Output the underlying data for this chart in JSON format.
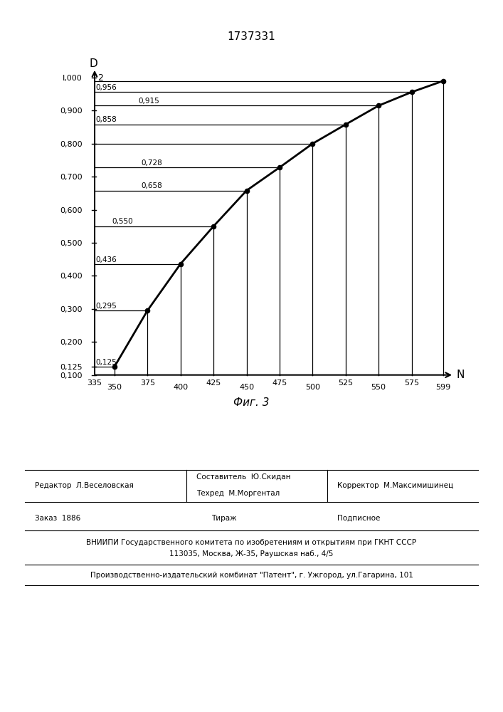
{
  "title": "1737331",
  "xlabel": "N",
  "fig_caption": "Фиг. 3",
  "x_data": [
    350,
    375,
    400,
    425,
    450,
    475,
    500,
    525,
    550,
    575,
    599
  ],
  "y_data": [
    0.125,
    0.295,
    0.436,
    0.55,
    0.658,
    0.728,
    0.8,
    0.858,
    0.915,
    0.956,
    0.99
  ],
  "yticks": [
    0.1,
    0.125,
    0.2,
    0.3,
    0.4,
    0.5,
    0.6,
    0.7,
    0.8,
    0.9,
    1.0
  ],
  "ytick_labels": [
    "0,100",
    "0,125",
    "0,200",
    "0,300",
    "0,400",
    "0,500",
    "0,600",
    "0,700",
    "0,800",
    "0,900",
    "I,000"
  ],
  "xlim": [
    330,
    608
  ],
  "ylim": [
    0.082,
    1.03
  ],
  "annotations": [
    [
      336,
      0.127,
      "0,125"
    ],
    [
      336,
      0.297,
      "0,295"
    ],
    [
      336,
      0.438,
      "0,436"
    ],
    [
      348,
      0.553,
      "0,550"
    ],
    [
      370,
      0.661,
      "0,658"
    ],
    [
      370,
      0.731,
      "0,728"
    ],
    [
      336,
      0.861,
      "0,858"
    ],
    [
      368,
      0.918,
      "0,915"
    ],
    [
      336,
      0.959,
      "0,956"
    ]
  ],
  "xtick_row1": [
    [
      335,
      "335"
    ],
    [
      375,
      "375"
    ],
    [
      425,
      "425"
    ],
    [
      475,
      "475"
    ],
    [
      525,
      "525"
    ],
    [
      575,
      "575"
    ]
  ],
  "xtick_row2": [
    [
      350,
      "350"
    ],
    [
      400,
      "400"
    ],
    [
      450,
      "450"
    ],
    [
      500,
      "500"
    ],
    [
      550,
      "550"
    ],
    [
      599,
      "599"
    ]
  ],
  "bottom_editor": "Редактор  Л.Веселовская",
  "bottom_compiler": "Составитель  Ю.Скидан",
  "bottom_techred": "Техред  М.Моргентал",
  "bottom_corrector": "Корректор  М.Максимишинец",
  "bottom_order": "Заказ  1886",
  "bottom_tirazh": "Тираж",
  "bottom_podpisnoe": "Подписное",
  "bottom_vniip1": "ВНИИПИ Государственного комитета по изобретениям и открытиям при ГКНТ СССР",
  "bottom_vniip2": "113035, Москва, Ж-35, Раушская наб., 4/5",
  "bottom_prod": "Производственно-издательский комбинат \"Патент\", г. Ужгород, ул.Гагарина, 101"
}
